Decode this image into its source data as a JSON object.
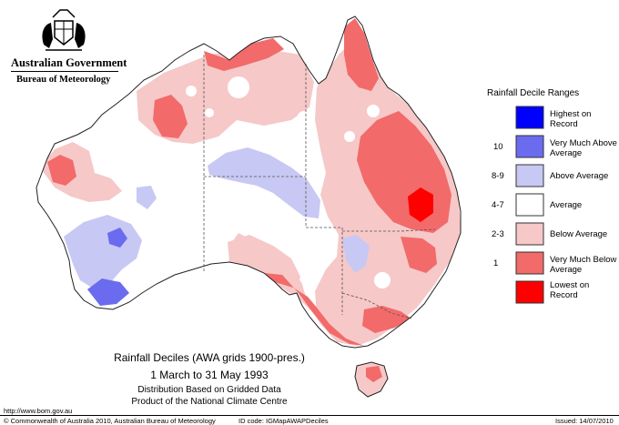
{
  "header": {
    "gov_name": "Australian Government",
    "bureau_name": "Bureau of Meteorology"
  },
  "legend": {
    "title": "Rainfall Decile Ranges",
    "items": [
      {
        "decile": "",
        "label": "Highest on Record",
        "color": "#0000ff"
      },
      {
        "decile": "10",
        "label": "Very Much Above Average",
        "color": "#6b6bf0"
      },
      {
        "decile": "8-9",
        "label": "Above Average",
        "color": "#c8c8f4"
      },
      {
        "decile": "4-7",
        "label": "Average",
        "color": "#ffffff"
      },
      {
        "decile": "2-3",
        "label": "Below Average",
        "color": "#f6c8c8"
      },
      {
        "decile": "1",
        "label": "Very Much Below Average",
        "color": "#f26a6a"
      },
      {
        "decile": "",
        "label": "Lowest on Record",
        "color": "#ff0000"
      }
    ]
  },
  "caption": {
    "line1": "Rainfall Deciles (AWA grids 1900-pres.)",
    "line2": "1 March to 31 May 1993",
    "line3": "Distribution Based on Gridded Data",
    "line4": "Product of the National Climate Centre"
  },
  "footer": {
    "url": "http://www.bom.gov.au",
    "copyright": "© Commonwealth of Australia 2010, Australian Bureau of Meteorology",
    "id_code": "ID code: IGMapAWAPDeciles",
    "issued": "Issued: 14/07/2010"
  },
  "colors": {
    "outline": "#222222",
    "border_dash": "#555555"
  }
}
